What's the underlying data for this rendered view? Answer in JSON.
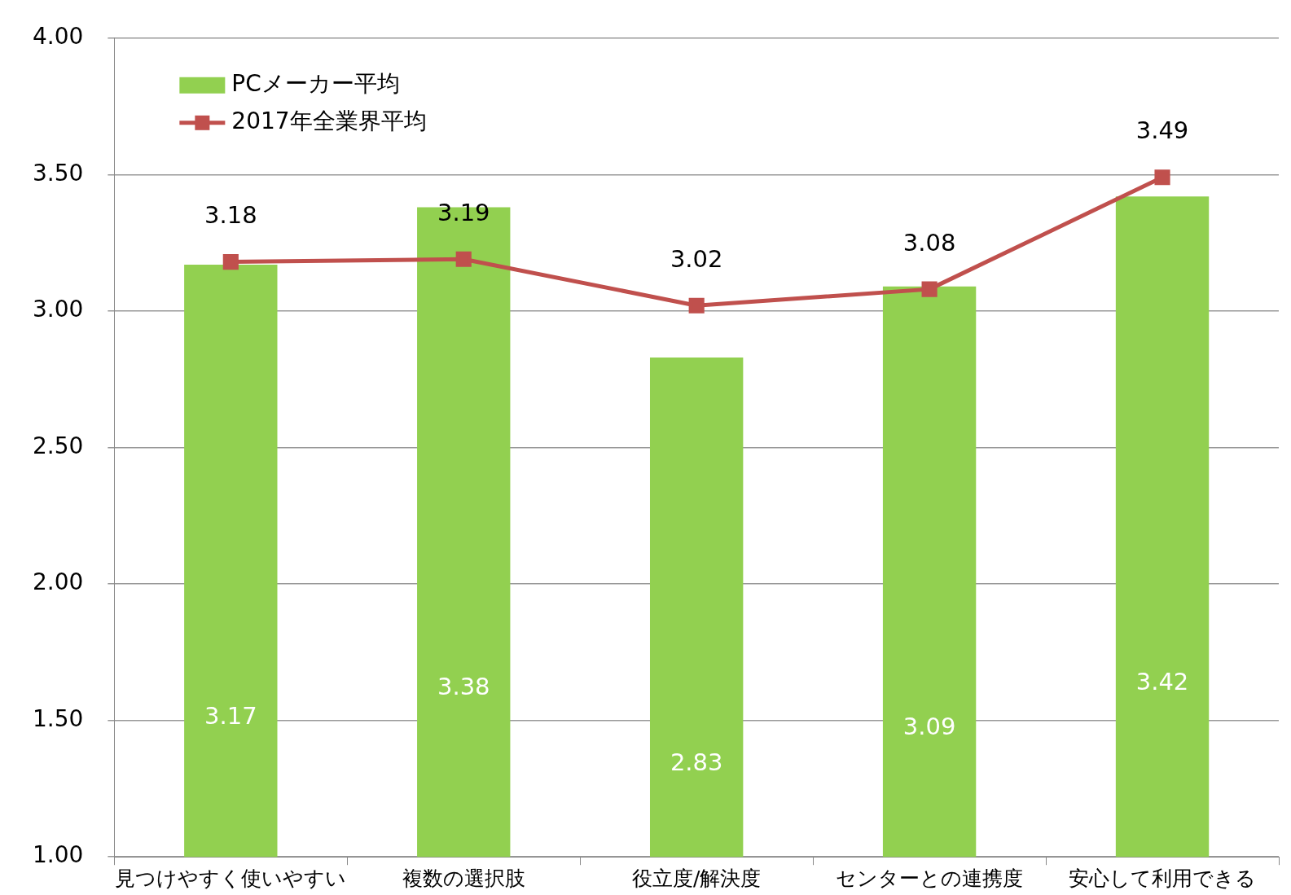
{
  "chart_data": {
    "type": "bar",
    "categories": [
      "見つけやすく使いやすい",
      "複数の選択肢",
      "役立度/解決度",
      "センターとの連携度",
      "安心して利用できる"
    ],
    "series": [
      {
        "name": "PCメーカー平均",
        "color": "#92d050",
        "values": [
          3.17,
          3.38,
          2.83,
          3.09,
          3.42
        ]
      },
      {
        "name": "2017年全業界平均",
        "type": "line",
        "color": "#c0504d",
        "values": [
          3.18,
          3.19,
          3.02,
          3.08,
          3.49
        ],
        "marker": "square"
      }
    ],
    "ylim": [
      1,
      4
    ],
    "yticks": [
      {
        "value": 1,
        "label": "1.00"
      },
      {
        "value": 1.5,
        "label": "1.50"
      },
      {
        "value": 2,
        "label": "2.00"
      },
      {
        "value": 2.5,
        "label": "2.50"
      },
      {
        "value": 3,
        "label": "3.00"
      },
      {
        "value": 3.5,
        "label": "3.50"
      },
      {
        "value": 4,
        "label": "4.00"
      }
    ],
    "grid": "y",
    "legend": "top left",
    "data_labels": true
  }
}
